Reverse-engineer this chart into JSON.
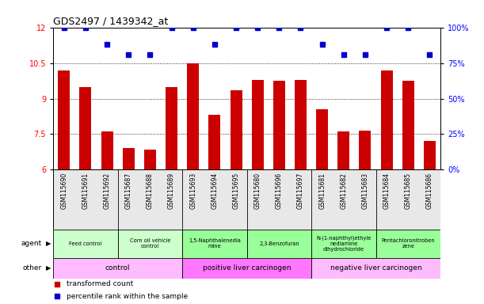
{
  "title": "GDS2497 / 1439342_at",
  "samples": [
    "GSM115690",
    "GSM115691",
    "GSM115692",
    "GSM115687",
    "GSM115688",
    "GSM115689",
    "GSM115693",
    "GSM115694",
    "GSM115695",
    "GSM115680",
    "GSM115696",
    "GSM115697",
    "GSM115681",
    "GSM115682",
    "GSM115683",
    "GSM115684",
    "GSM115685",
    "GSM115686"
  ],
  "transformed_count": [
    10.2,
    9.5,
    7.6,
    6.9,
    6.85,
    9.5,
    10.5,
    8.3,
    9.35,
    9.8,
    9.75,
    9.8,
    8.55,
    7.6,
    7.65,
    10.2,
    9.75,
    7.2
  ],
  "percentile_rank": [
    100,
    100,
    88,
    81,
    81,
    100,
    100,
    88,
    100,
    100,
    100,
    100,
    88,
    81,
    81,
    100,
    100,
    81
  ],
  "ylim_left": [
    6,
    12
  ],
  "ylim_right": [
    0,
    100
  ],
  "yticks_left": [
    6,
    7.5,
    9,
    10.5,
    12
  ],
  "yticks_right": [
    0,
    25,
    50,
    75,
    100
  ],
  "ytick_labels_right": [
    "0%",
    "25%",
    "50%",
    "75%",
    "100%"
  ],
  "bar_color": "#cc0000",
  "dot_color": "#0000cc",
  "agent_groups": [
    {
      "label": "Feed control",
      "start": 0,
      "end": 3,
      "color": "#ccffcc"
    },
    {
      "label": "Corn oil vehicle\ncontrol",
      "start": 3,
      "end": 6,
      "color": "#ccffcc"
    },
    {
      "label": "1,5-Naphthalenedia\nmine",
      "start": 6,
      "end": 9,
      "color": "#99ff99"
    },
    {
      "label": "2,3-Benzofuran",
      "start": 9,
      "end": 12,
      "color": "#99ff99"
    },
    {
      "label": "N-(1-naphthyl)ethyle\nnediamine\ndihydrochloride",
      "start": 12,
      "end": 15,
      "color": "#99ff99"
    },
    {
      "label": "Pentachloronitroben\nzene",
      "start": 15,
      "end": 18,
      "color": "#99ff99"
    }
  ],
  "other_groups": [
    {
      "label": "control",
      "start": 0,
      "end": 6,
      "color": "#ffbbff"
    },
    {
      "label": "positive liver carcinogen",
      "start": 6,
      "end": 12,
      "color": "#ff77ff"
    },
    {
      "label": "negative liver carcinogen",
      "start": 12,
      "end": 18,
      "color": "#ffbbff"
    }
  ],
  "legend_red": "transformed count",
  "legend_blue": "percentile rank within the sample",
  "group_boundaries": [
    3,
    6,
    9,
    12,
    15
  ],
  "bg_color": "#ffffff"
}
